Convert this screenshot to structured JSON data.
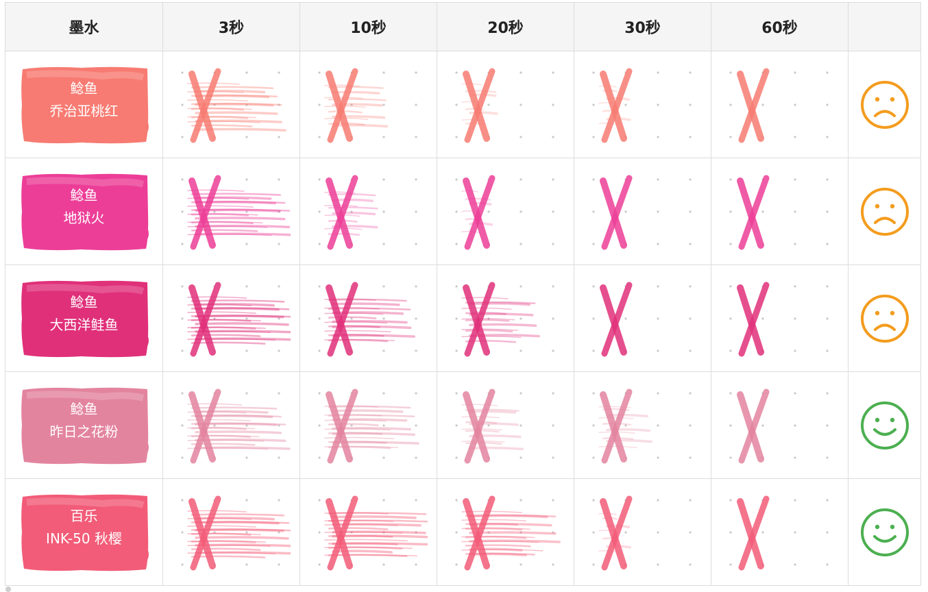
{
  "columns": [
    "墨水",
    "3秒",
    "10秒",
    "20秒",
    "30秒",
    "60秒",
    ""
  ],
  "inks": [
    {
      "brand": "鲶鱼",
      "name": "乔治亚桃红",
      "color": "#f77b72",
      "smudge": [
        0.85,
        0.45,
        0.12,
        0.05,
        0.0
      ],
      "rating": "sad-face-icon",
      "rating_color": "#f39c1e"
    },
    {
      "brand": "鲶鱼",
      "name": "地狱火",
      "color": "#ec3e97",
      "smudge": [
        0.95,
        0.35,
        0.05,
        0.0,
        0.0
      ],
      "rating": "sad-face-icon",
      "rating_color": "#f39c1e"
    },
    {
      "brand": "鲶鱼",
      "name": "大西洋鲑鱼",
      "color": "#e0307a",
      "smudge": [
        1.0,
        0.75,
        0.6,
        0.0,
        0.0
      ],
      "rating": "sad-face-icon",
      "rating_color": "#f39c1e"
    },
    {
      "brand": "鲶鱼",
      "name": "昨日之花粉",
      "color": "#e3849f",
      "smudge": [
        0.9,
        0.8,
        0.4,
        0.3,
        0.0
      ],
      "rating": "smile-face-icon",
      "rating_color": "#4caf50"
    },
    {
      "brand": "百乐",
      "name": "INK-50 秋樱",
      "color": "#f25c78",
      "smudge": [
        1.0,
        1.0,
        0.85,
        0.05,
        0.0
      ],
      "rating": "smile-face-icon",
      "rating_color": "#4caf50"
    }
  ]
}
